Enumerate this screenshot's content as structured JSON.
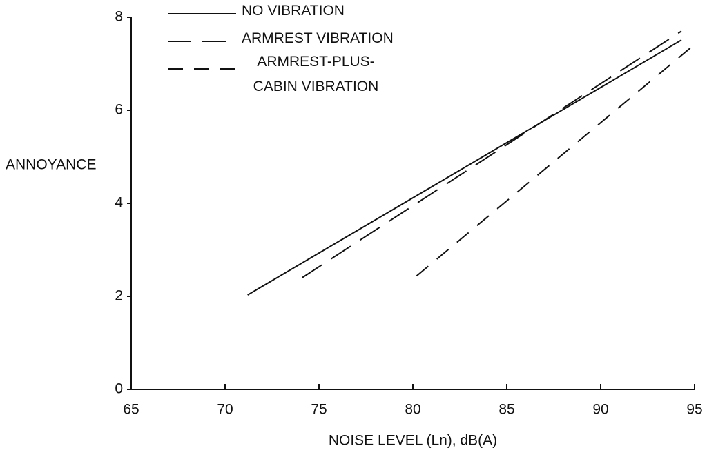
{
  "chart_data": {
    "type": "line",
    "ylabel": "ANNOYANCE",
    "xlabel": "NOISE LEVEL (Ln), dB(A)",
    "xlim": [
      65,
      95
    ],
    "ylim": [
      0,
      8
    ],
    "xticks": [
      65,
      70,
      75,
      80,
      85,
      90,
      95
    ],
    "yticks": [
      0,
      2,
      4,
      6,
      8
    ],
    "grid": false,
    "series": [
      {
        "name": "NO VIBRATION",
        "color": "#111111",
        "line_style": "solid",
        "x": [
          71.2,
          94.3
        ],
        "values": [
          2.03,
          7.51
        ]
      },
      {
        "name": "ARMREST VIBRATION",
        "color": "#111111",
        "line_style": "long-dash",
        "x": [
          74.1,
          94.3
        ],
        "values": [
          2.4,
          7.7
        ]
      },
      {
        "name": "ARMREST-PLUS-CABIN VIBRATION",
        "color": "#111111",
        "line_style": "dash",
        "x": [
          80.2,
          94.9
        ],
        "values": [
          2.44,
          7.38
        ]
      }
    ]
  }
}
